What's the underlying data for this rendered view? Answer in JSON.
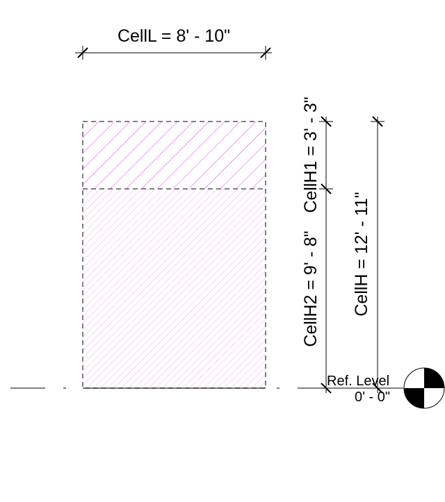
{
  "dimensions": {
    "cell_length": "CellL = 8' - 10\"",
    "cell_height_upper": "CellH1 = 3' - 3\"",
    "cell_height_lower": "CellH2 = 9' - 8\"",
    "cell_height_total": "CellH = 12' - 11\""
  },
  "level": {
    "name": "Ref. Level",
    "elevation": "0' - 0\""
  },
  "colors": {
    "hatch": "#e040e0",
    "hatch_light": "#f0a8f0",
    "outline": "#555555",
    "line": "#000000"
  }
}
